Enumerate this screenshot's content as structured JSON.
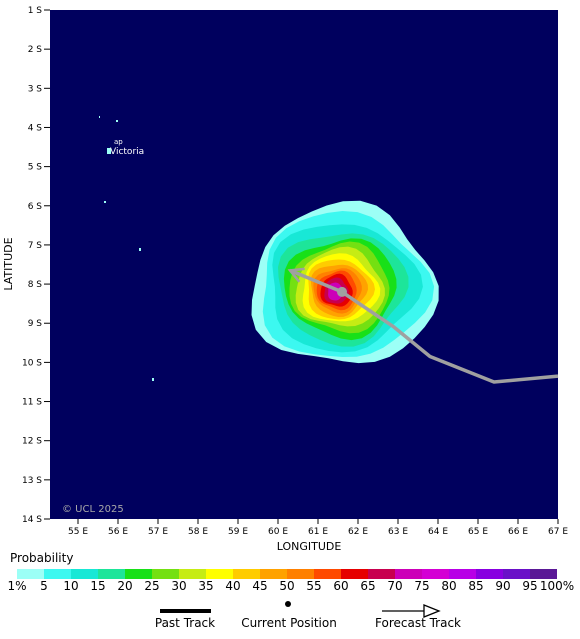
{
  "map": {
    "lat_labels": [
      "1 S",
      "2 S",
      "3 S",
      "4 S",
      "5 S",
      "6 S",
      "7 S",
      "8 S",
      "9 S",
      "10 S",
      "11 S",
      "12 S",
      "13 S",
      "14 S"
    ],
    "lon_labels": [
      "55 E",
      "56 E",
      "57 E",
      "58 E",
      "59 E",
      "60 E",
      "61 E",
      "62 E",
      "63 E",
      "64 E",
      "65 E",
      "66 E",
      "67 E"
    ],
    "ylabel": "LATITUDE",
    "xlabel": "LONGITUDE",
    "place_label": "Victoria",
    "island_label": "ap",
    "copyright": "© UCL 2025",
    "ocean_color": "#00005e",
    "track_color": "#a0a0a0",
    "current_position": {
      "lon": 61.6,
      "lat": -8.2
    },
    "track": [
      {
        "lon": 67.0,
        "lat": -10.35
      },
      {
        "lon": 65.4,
        "lat": -10.5
      },
      {
        "lon": 63.8,
        "lat": -9.85
      },
      {
        "lon": 62.9,
        "lat": -9.1
      },
      {
        "lon": 61.6,
        "lat": -8.2
      },
      {
        "lon": 60.3,
        "lat": -7.65
      }
    ]
  },
  "legend": {
    "title": "Probability",
    "tick_labels": [
      "1%",
      "5",
      "10",
      "15",
      "20",
      "25",
      "30",
      "35",
      "40",
      "45",
      "50",
      "55",
      "60",
      "65",
      "70",
      "75",
      "80",
      "85",
      "90",
      "95",
      "100%"
    ],
    "colors": [
      "#9cfff6",
      "#3cf8f0",
      "#18e8d6",
      "#1de59a",
      "#18e018",
      "#74e012",
      "#c6ec14",
      "#ffff00",
      "#ffcc00",
      "#ffa200",
      "#ff8000",
      "#ff4a00",
      "#e60000",
      "#c8004e",
      "#cc00b8",
      "#d400d4",
      "#b800e6",
      "#8800e0",
      "#6a10c8",
      "#5a1896",
      "#520a60"
    ],
    "past_track_label": "Past Track",
    "current_position_label": "Current Position",
    "forecast_track_label": "Forecast Track"
  }
}
